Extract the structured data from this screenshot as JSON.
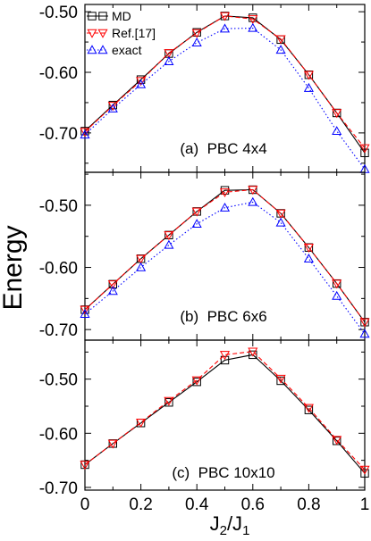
{
  "figure": {
    "ylabel": "Energy",
    "xlabel_main": "J",
    "xlabel_sub1": "2",
    "xlabel_slash": "/J",
    "xlabel_sub2": "1",
    "x_ticks": [
      "0",
      "0.2",
      "0.4",
      "0.6",
      "0.8",
      "1"
    ],
    "legend": [
      {
        "label": "MD",
        "marker": "square",
        "color": "#000000",
        "dash": "none"
      },
      {
        "label": "Ref.[17]",
        "marker": "triangle-down",
        "color": "#ff0000",
        "dash": "dashed"
      },
      {
        "label": "exact",
        "marker": "triangle-up",
        "color": "#0000ff",
        "dash": "dotted"
      }
    ]
  },
  "chart_data": [
    {
      "type": "line",
      "panel_label": "(a)  PBC 4x4",
      "xlabel": "J2/J1",
      "ylabel": "Energy",
      "xlim": [
        0,
        1
      ],
      "ylim": [
        -0.765,
        -0.488
      ],
      "y_ticks": [
        "-0.50",
        "-0.60",
        "-0.70"
      ],
      "x": [
        0,
        0.1,
        0.2,
        0.3,
        0.4,
        0.5,
        0.6,
        0.7,
        0.8,
        0.9,
        1.0
      ],
      "series": [
        {
          "name": "MD",
          "values": [
            -0.697,
            -0.654,
            -0.612,
            -0.569,
            -0.534,
            -0.507,
            -0.51,
            -0.546,
            -0.604,
            -0.667,
            -0.733
          ]
        },
        {
          "name": "Ref.[17]",
          "values": [
            -0.698,
            -0.655,
            -0.614,
            -0.568,
            -0.535,
            -0.507,
            -0.512,
            -0.545,
            -0.604,
            -0.667,
            -0.725
          ]
        },
        {
          "name": "exact",
          "values": [
            -0.703,
            -0.66,
            -0.62,
            -0.582,
            -0.551,
            -0.528,
            -0.527,
            -0.563,
            -0.626,
            -0.697,
            -0.76
          ]
        }
      ]
    },
    {
      "type": "line",
      "panel_label": "(b)  PBC 6x6",
      "xlabel": "J2/J1",
      "ylabel": "Energy",
      "xlim": [
        0,
        1
      ],
      "ylim": [
        -0.717,
        -0.447
      ],
      "y_ticks": [
        "-0.50",
        "-0.60",
        "-0.70"
      ],
      "x": [
        0,
        0.1,
        0.2,
        0.3,
        0.4,
        0.5,
        0.6,
        0.7,
        0.8,
        0.9,
        1.0
      ],
      "series": [
        {
          "name": "MD",
          "values": [
            -0.668,
            -0.627,
            -0.586,
            -0.548,
            -0.51,
            -0.476,
            -0.475,
            -0.513,
            -0.568,
            -0.626,
            -0.688
          ]
        },
        {
          "name": "Ref.[17]",
          "values": [
            -0.668,
            -0.627,
            -0.586,
            -0.548,
            -0.51,
            -0.479,
            -0.475,
            -0.513,
            -0.568,
            -0.626,
            -0.688
          ]
        },
        {
          "name": "exact",
          "values": [
            -0.675,
            -0.638,
            -0.6,
            -0.564,
            -0.53,
            -0.504,
            -0.495,
            -0.528,
            -0.586,
            -0.646,
            -0.707
          ]
        }
      ]
    },
    {
      "type": "line",
      "panel_label": "(c)  PBC 10x10",
      "xlabel": "J2/J1",
      "ylabel": "Energy",
      "xlim": [
        0,
        1
      ],
      "ylim": [
        -0.705,
        -0.428
      ],
      "y_ticks": [
        "-0.50",
        "-0.60",
        "-0.70"
      ],
      "x": [
        0,
        0.1,
        0.2,
        0.3,
        0.4,
        0.5,
        0.6,
        0.7,
        0.8,
        0.9,
        1.0
      ],
      "series": [
        {
          "name": "MD",
          "values": [
            -0.658,
            -0.619,
            -0.581,
            -0.543,
            -0.505,
            -0.465,
            -0.455,
            -0.503,
            -0.557,
            -0.614,
            -0.674
          ]
        },
        {
          "name": "Ref.[17]",
          "values": [
            -0.658,
            -0.619,
            -0.58,
            -0.54,
            -0.502,
            -0.455,
            -0.449,
            -0.499,
            -0.553,
            -0.612,
            -0.667
          ]
        }
      ]
    }
  ]
}
